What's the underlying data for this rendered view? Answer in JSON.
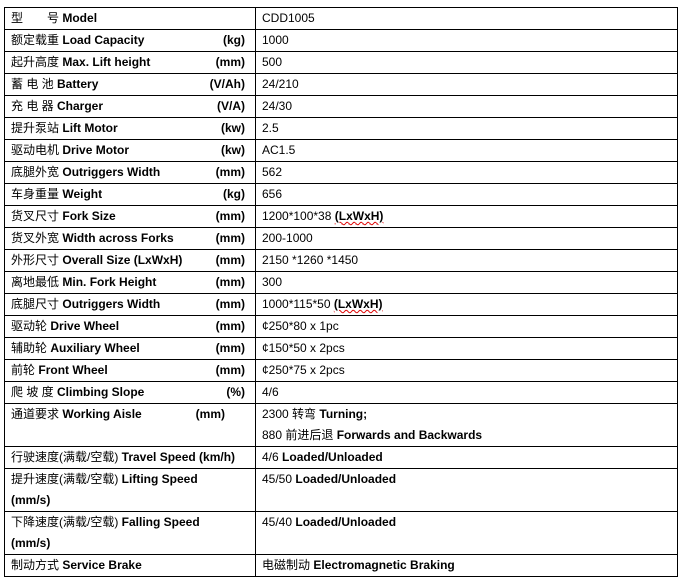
{
  "rows": [
    {
      "cn": "型　　号",
      "en": "Model",
      "unit": "",
      "value": "CDD1005",
      "value_bold": ""
    },
    {
      "cn": "额定载重",
      "en": "Load Capacity",
      "unit": "(kg)",
      "value": "1000",
      "value_bold": ""
    },
    {
      "cn": "起升高度",
      "en": "Max. Lift height",
      "unit": "(mm)",
      "value": "500",
      "value_bold": ""
    },
    {
      "cn": "蓄 电 池",
      "en": "Battery",
      "unit": "(V/Ah)",
      "value": "24/210",
      "value_bold": ""
    },
    {
      "cn": "充 电 器",
      "en": "Charger",
      "unit": "(V/A)",
      "value": "24/30",
      "value_bold": ""
    },
    {
      "cn": "提升泵站",
      "en": "Lift Motor",
      "unit": "(kw)",
      "value": "2.5",
      "value_bold": ""
    },
    {
      "cn": "驱动电机",
      "en": "Drive Motor",
      "unit": "(kw)",
      "value": "AC1.5",
      "value_bold": ""
    },
    {
      "cn": "底腿外宽",
      "en": "Outriggers Width",
      "unit": "(mm)",
      "value": "562",
      "value_bold": ""
    },
    {
      "cn": "车身重量",
      "en": "Weight",
      "unit": "(kg)",
      "value": "656",
      "value_bold": ""
    },
    {
      "cn": "货叉尺寸",
      "en": "Fork Size",
      "unit": "(mm)",
      "value": "1200*100*38 ",
      "value_bold": "(LxWxH)"
    },
    {
      "cn": "货叉外宽",
      "en": "Width across Forks",
      "unit": "(mm)",
      "value": "200-1000",
      "value_bold": ""
    },
    {
      "cn": "外形尺寸",
      "en": "Overall Size (LxWxH)",
      "unit": "(mm)",
      "value": "2150 *1260 *1450",
      "value_bold": ""
    },
    {
      "cn": "离地最低",
      "en": "Min. Fork Height",
      "unit": "(mm)",
      "value": "300",
      "value_bold": ""
    },
    {
      "cn": "底腿尺寸",
      "en": "Outriggers Width",
      "unit": "(mm)",
      "value": "1000*115*50 ",
      "value_bold": "(LxWxH)"
    },
    {
      "cn": "驱动轮",
      "en": "Drive Wheel",
      "unit": "(mm)",
      "value": "¢250*80 x 1pc",
      "value_bold": ""
    },
    {
      "cn": "辅助轮",
      "en": "Auxiliary Wheel",
      "unit": "(mm)",
      "value": "¢150*50 x 2pcs",
      "value_bold": ""
    },
    {
      "cn": "前轮",
      "en": "Front Wheel",
      "unit": "(mm)",
      "value": "¢250*75 x 2pcs",
      "value_bold": ""
    },
    {
      "cn": "爬 坡 度",
      "en": "Climbing Slope",
      "unit": "(%)",
      "value": "4/6",
      "value_bold": ""
    }
  ],
  "aisle": {
    "cn": "通道要求",
    "en": "Working Aisle",
    "unit": "(mm)",
    "line1": "2300 转弯",
    "line1_bold": "Turning;",
    "line2": "880 前进后退",
    "line2_bold": "Forwards and Backwards"
  },
  "travel": {
    "cn": "行驶速度(满载/空载)",
    "en": "Travel Speed (km/h)",
    "value": "4/6",
    "value_bold": "Loaded/Unloaded"
  },
  "lifting": {
    "cn": "提升速度(满载/空载)",
    "en": "Lifting Speed",
    "unit": "(mm/s)",
    "value": "45/50",
    "value_bold": "Loaded/Unloaded"
  },
  "falling": {
    "cn": "下降速度(满载/空载)",
    "en": "Falling Speed",
    "unit": "(mm/s)",
    "value": "45/40",
    "value_bold": "Loaded/Unloaded"
  },
  "brake": {
    "cn": "制动方式",
    "en": "Service Brake",
    "value": "电磁制动",
    "value_bold": "Electromagnetic Braking"
  }
}
